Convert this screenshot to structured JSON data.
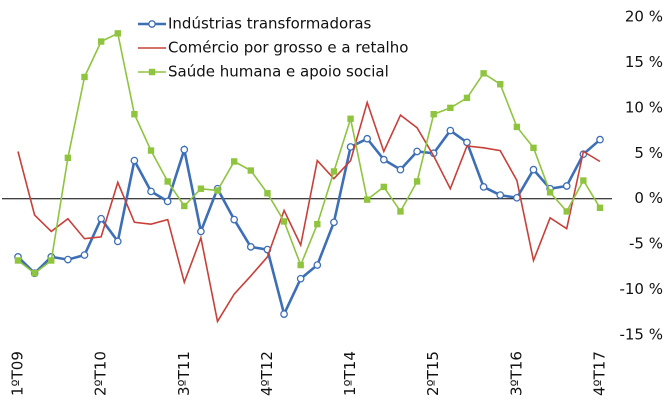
{
  "chart_data": {
    "type": "line",
    "categories": [
      "1ºT09",
      null,
      null,
      null,
      null,
      "2ºT10",
      null,
      null,
      null,
      null,
      "3ºT11",
      null,
      null,
      null,
      null,
      "4ºT12",
      null,
      null,
      null,
      null,
      "1ºT14",
      null,
      null,
      null,
      null,
      "2ºT15",
      null,
      null,
      null,
      null,
      "3ºT16",
      null,
      null,
      null,
      null,
      "4ºT17"
    ],
    "series": [
      {
        "name": "Indústrias transformadoras",
        "color": "#3d6fb6",
        "marker": "circle",
        "values": [
          -6.4,
          -8.2,
          -6.4,
          -6.7,
          -6.2,
          -2.2,
          -4.7,
          4.2,
          0.8,
          -0.3,
          5.4,
          -3.6,
          1.1,
          -2.3,
          -5.3,
          -5.6,
          -12.7,
          -8.8,
          -7.3,
          -2.6,
          5.7,
          6.6,
          4.3,
          3.2,
          5.2,
          5.0,
          7.5,
          6.2,
          1.3,
          0.4,
          0.1,
          3.2,
          1.1,
          1.4,
          4.9,
          6.5
        ]
      },
      {
        "name": "Comércio por grosso e a retalho",
        "color": "#c8403a",
        "marker": "none",
        "values": [
          5.2,
          -1.8,
          -3.6,
          -2.2,
          -4.4,
          -4.2,
          1.8,
          -2.6,
          -2.8,
          -2.3,
          -9.2,
          -4.3,
          -13.5,
          -10.5,
          -8.5,
          -6.4,
          -1.3,
          -5.1,
          4.2,
          2.2,
          4.2,
          10.6,
          5.2,
          9.2,
          7.8,
          4.7,
          1.1,
          5.8,
          5.6,
          5.3,
          2.0,
          -6.8,
          -2.1,
          -3.3,
          5.2,
          4.1
        ]
      },
      {
        "name": "Saúde humana e apoio social",
        "color": "#8fc43f",
        "marker": "square",
        "values": [
          -6.8,
          -8.2,
          -6.8,
          4.5,
          13.4,
          17.3,
          18.2,
          9.3,
          5.3,
          1.9,
          -0.8,
          1.1,
          0.9,
          4.1,
          3.1,
          0.6,
          -2.5,
          -7.3,
          -2.8,
          3.0,
          8.8,
          -0.1,
          1.3,
          -1.4,
          1.9,
          9.3,
          10.0,
          11.1,
          13.8,
          12.6,
          7.9,
          5.6,
          0.7,
          -1.4,
          2.0,
          -1.0
        ]
      }
    ],
    "ylim": [
      -15,
      20
    ],
    "yticks": [
      {
        "value": -15,
        "label": "-15 %"
      },
      {
        "value": -10,
        "label": "-10 %"
      },
      {
        "value": -5,
        "label": "-5 %"
      },
      {
        "value": 0,
        "label": "0 %"
      },
      {
        "value": 5,
        "label": "5 %"
      },
      {
        "value": 10,
        "label": "10 %"
      },
      {
        "value": 15,
        "label": "15 %"
      },
      {
        "value": 20,
        "label": "20 %"
      }
    ],
    "grid": false
  }
}
